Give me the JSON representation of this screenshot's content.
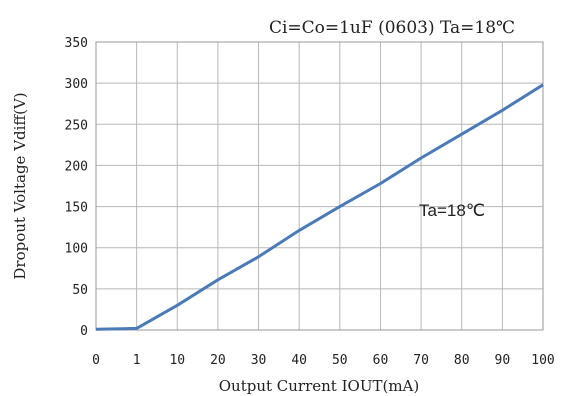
{
  "chart_data": {
    "type": "line",
    "title": "Ci=Co=1uF (0603) Ta=18℃",
    "xlabel": "Output Current IOUT(mA)",
    "ylabel": "Dropout Voltage Vdiff(V)",
    "x_ticks": [
      "0",
      "1",
      "10",
      "20",
      "30",
      "40",
      "50",
      "60",
      "70",
      "80",
      "90",
      "100"
    ],
    "y_ticks": [
      "0",
      "50",
      "100",
      "150",
      "200",
      "250",
      "300",
      "350"
    ],
    "ylim": [
      0,
      350
    ],
    "grid": true,
    "annotation": "Ta=18℃",
    "series": [
      {
        "color": "#4a7ab8",
        "x": [
          0,
          1,
          10,
          20,
          30,
          40,
          50,
          60,
          70,
          80,
          90,
          100
        ],
        "y": [
          1,
          2,
          30,
          61,
          89,
          121,
          150,
          178,
          209,
          238,
          267,
          298
        ]
      }
    ]
  }
}
